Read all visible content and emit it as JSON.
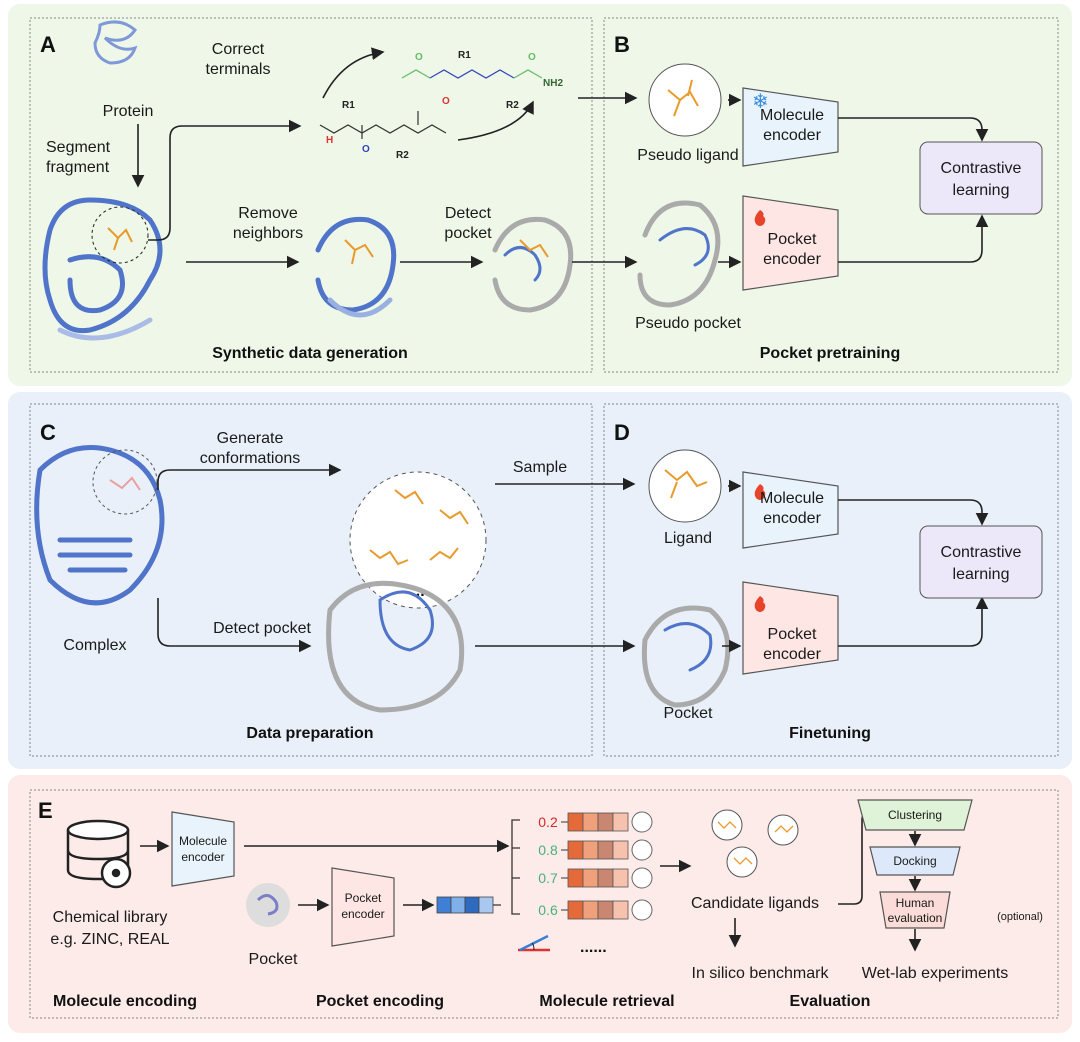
{
  "colors": {
    "panel_ab_bg": "#eef7e8",
    "panel_cd_bg": "#e9f0f9",
    "panel_e_bg": "#fcebe9",
    "molecule_encoder": "#e8f3fb",
    "pocket_encoder": "#fde6e3",
    "contrastive": "#ece8fa",
    "score_low": "#d62828",
    "score_high": "#4caf7a"
  },
  "icons": {
    "frozen": "snowflake-icon",
    "trainable": "flame-icon",
    "library": "database-icon"
  },
  "panel_a": {
    "label": "A",
    "protein": "Protein",
    "segment": [
      "Segment",
      "fragment"
    ],
    "correct": [
      "Correct",
      "terminals"
    ],
    "remove": [
      "Remove",
      "neighbors"
    ],
    "detect": [
      "Detect",
      "pocket"
    ],
    "title": "Synthetic data generation",
    "chem": {
      "r1": "R1",
      "r2": "R2",
      "h": "H",
      "o": "O",
      "nh2": "NH2"
    }
  },
  "panel_b": {
    "label": "B",
    "pseudo_ligand": "Pseudo ligand",
    "pseudo_pocket": "Pseudo pocket",
    "molecule_encoder": [
      "Molecule",
      "encoder"
    ],
    "pocket_encoder": [
      "Pocket",
      "encoder"
    ],
    "contrastive": [
      "Contrastive",
      "learning"
    ],
    "title": "Pocket pretraining"
  },
  "panel_c": {
    "label": "C",
    "generate": [
      "Generate",
      "conformations"
    ],
    "sample": "Sample",
    "complex": "Complex",
    "detect": "Detect pocket",
    "ellipsis": "...",
    "title": "Data preparation"
  },
  "panel_d": {
    "label": "D",
    "ligand": "Ligand",
    "pocket": "Pocket",
    "molecule_encoder": [
      "Molecule",
      "encoder"
    ],
    "pocket_encoder": [
      "Pocket",
      "encoder"
    ],
    "contrastive": [
      "Contrastive",
      "learning"
    ],
    "title": "Finetuning"
  },
  "panel_e": {
    "label": "E",
    "molecule_encoder": [
      "Molecule",
      "encoder"
    ],
    "pocket_encoder": [
      "Pocket",
      "encoder"
    ],
    "library": [
      "Chemical library",
      "e.g. ZINC, REAL"
    ],
    "pocket": "Pocket",
    "scores": [
      "0.2",
      "0.8",
      "0.7",
      "0.6"
    ],
    "more": "......",
    "candidates": "Candidate ligands",
    "benchmark": "In silico benchmark",
    "clustering": "Clustering",
    "docking": "Docking",
    "human": [
      "Human",
      "evaluation"
    ],
    "optional": "(optional)",
    "wetlab": "Wet-lab experiments",
    "sections": [
      "Molecule encoding",
      "Pocket encoding",
      "Molecule retrieval",
      "Evaluation"
    ]
  }
}
